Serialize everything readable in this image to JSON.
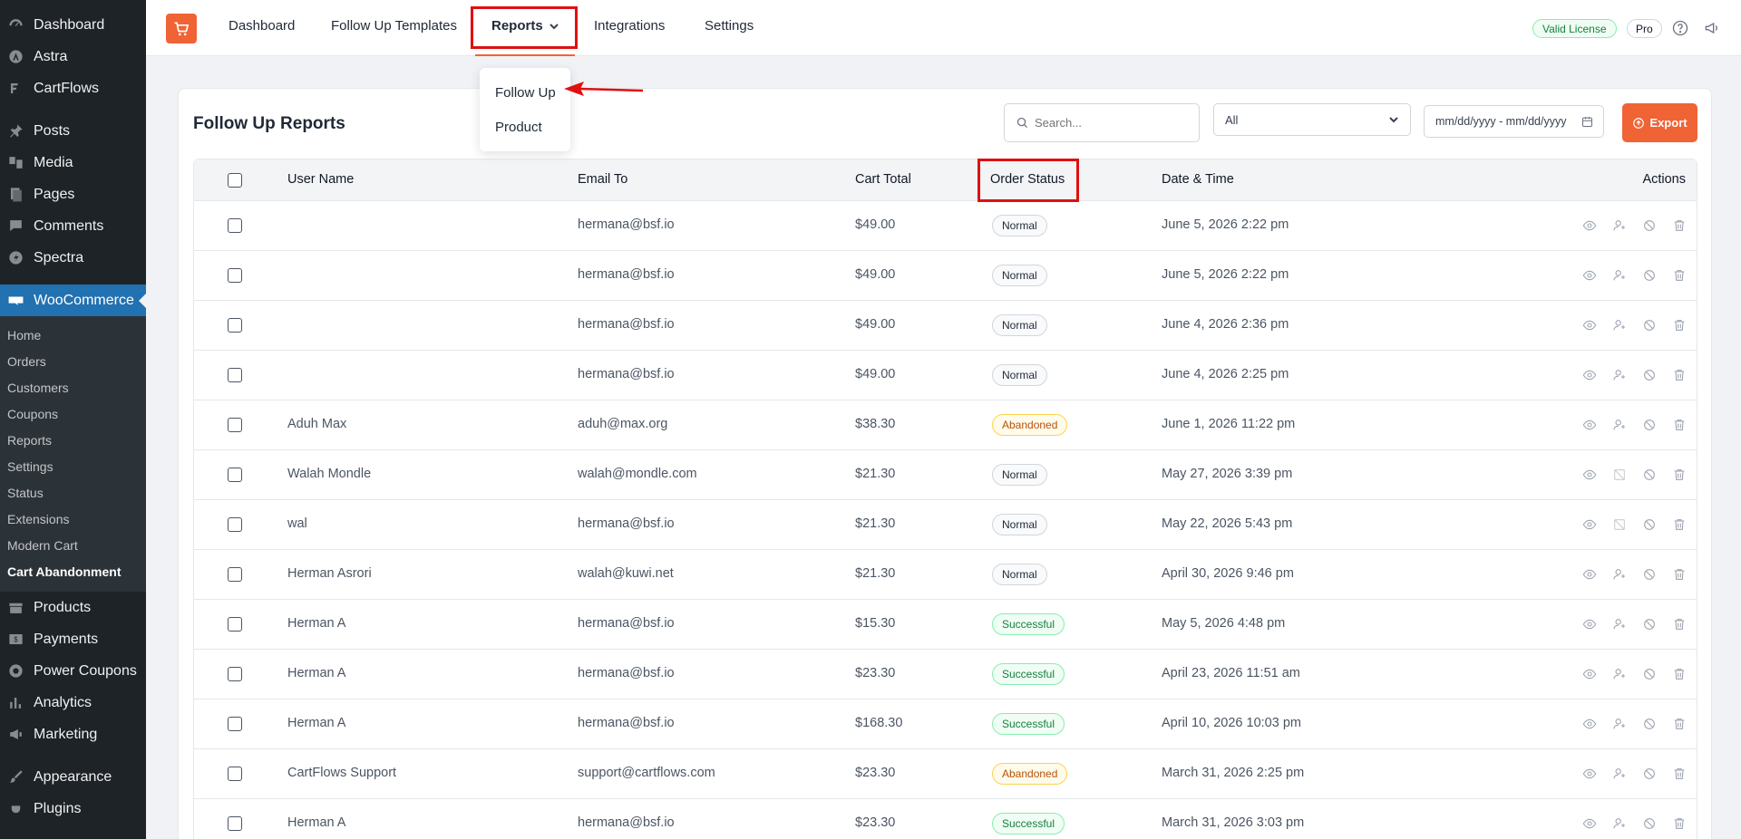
{
  "sidebar": {
    "group1": [
      {
        "label": "Dashboard",
        "icon": "dashboard-icon"
      },
      {
        "label": "Astra",
        "icon": "astra-icon"
      },
      {
        "label": "CartFlows",
        "icon": "cartflows-icon"
      }
    ],
    "group2": [
      {
        "label": "Posts",
        "icon": "pin-icon"
      },
      {
        "label": "Media",
        "icon": "media-icon"
      },
      {
        "label": "Pages",
        "icon": "pages-icon"
      },
      {
        "label": "Comments",
        "icon": "comment-icon"
      },
      {
        "label": "Spectra",
        "icon": "spectra-icon"
      }
    ],
    "woocommerce": {
      "label": "WooCommerce",
      "icon": "woocommerce-icon"
    },
    "woo_submenu": [
      "Home",
      "Orders",
      "Customers",
      "Coupons",
      "Reports",
      "Settings",
      "Status",
      "Extensions",
      "Modern Cart",
      "Cart Abandonment"
    ],
    "woo_current": "Cart Abandonment",
    "group3": [
      {
        "label": "Products",
        "icon": "products-icon"
      },
      {
        "label": "Payments",
        "icon": "payments-icon"
      },
      {
        "label": "Power Coupons",
        "icon": "coupon-icon"
      },
      {
        "label": "Analytics",
        "icon": "analytics-icon"
      },
      {
        "label": "Marketing",
        "icon": "megaphone-icon"
      }
    ],
    "group4": [
      {
        "label": "Appearance",
        "icon": "brush-icon"
      },
      {
        "label": "Plugins",
        "icon": "plug-icon"
      }
    ]
  },
  "topnav": {
    "items": [
      "Dashboard",
      "Follow Up Templates",
      "Reports",
      "Integrations",
      "Settings"
    ],
    "license_badge": "Valid License",
    "pro_badge": "Pro"
  },
  "reports_dropdown": [
    "Follow Up",
    "Product"
  ],
  "card": {
    "title": "Follow Up Reports",
    "search_placeholder": "Search...",
    "filter_value": "All",
    "date_placeholder": "mm/dd/yyyy - mm/dd/yyyy",
    "export_label": "Export"
  },
  "table": {
    "headers": [
      "User Name",
      "Email To",
      "Cart Total",
      "Order Status",
      "Date & Time",
      "Actions"
    ],
    "rows": [
      {
        "user": "",
        "email": "hermana@bsf.io",
        "total": "$49.00",
        "status": "Normal",
        "date": "June 5, 2026 2:22 pm"
      },
      {
        "user": "",
        "email": "hermana@bsf.io",
        "total": "$49.00",
        "status": "Normal",
        "date": "June 5, 2026 2:22 pm"
      },
      {
        "user": "",
        "email": "hermana@bsf.io",
        "total": "$49.00",
        "status": "Normal",
        "date": "June 4, 2026 2:36 pm"
      },
      {
        "user": "",
        "email": "hermana@bsf.io",
        "total": "$49.00",
        "status": "Normal",
        "date": "June 4, 2026 2:25 pm"
      },
      {
        "user": "Aduh Max",
        "email": "aduh@max.org",
        "total": "$38.30",
        "status": "Abandoned",
        "date": "June 1, 2026 11:22 pm"
      },
      {
        "user": "Walah Mondle",
        "email": "walah@mondle.com",
        "total": "$21.30",
        "status": "Normal",
        "date": "May 27, 2026 3:39 pm"
      },
      {
        "user": "wal",
        "email": "hermana@bsf.io",
        "total": "$21.30",
        "status": "Normal",
        "date": "May 22, 2026 5:43 pm"
      },
      {
        "user": "Herman Asrori",
        "email": "walah@kuwi.net",
        "total": "$21.30",
        "status": "Normal",
        "date": "April 30, 2026 9:46 pm"
      },
      {
        "user": "Herman A",
        "email": "hermana@bsf.io",
        "total": "$15.30",
        "status": "Successful",
        "date": "May 5, 2026 4:48 pm"
      },
      {
        "user": "Herman A",
        "email": "hermana@bsf.io",
        "total": "$23.30",
        "status": "Successful",
        "date": "April 23, 2026 11:51 am"
      },
      {
        "user": "Herman A",
        "email": "hermana@bsf.io",
        "total": "$168.30",
        "status": "Successful",
        "date": "April 10, 2026 10:03 pm"
      },
      {
        "user": "CartFlows Support",
        "email": "support@cartflows.com",
        "total": "$23.30",
        "status": "Abandoned",
        "date": "March 31, 2026 2:25 pm"
      },
      {
        "user": "Herman A",
        "email": "hermana@bsf.io",
        "total": "$23.30",
        "status": "Successful",
        "date": "March 31, 2026 3:03 pm"
      }
    ]
  },
  "colors": {
    "accent": "#f06335",
    "wp_active": "#2271b1",
    "highlight_box": "#e01010"
  }
}
